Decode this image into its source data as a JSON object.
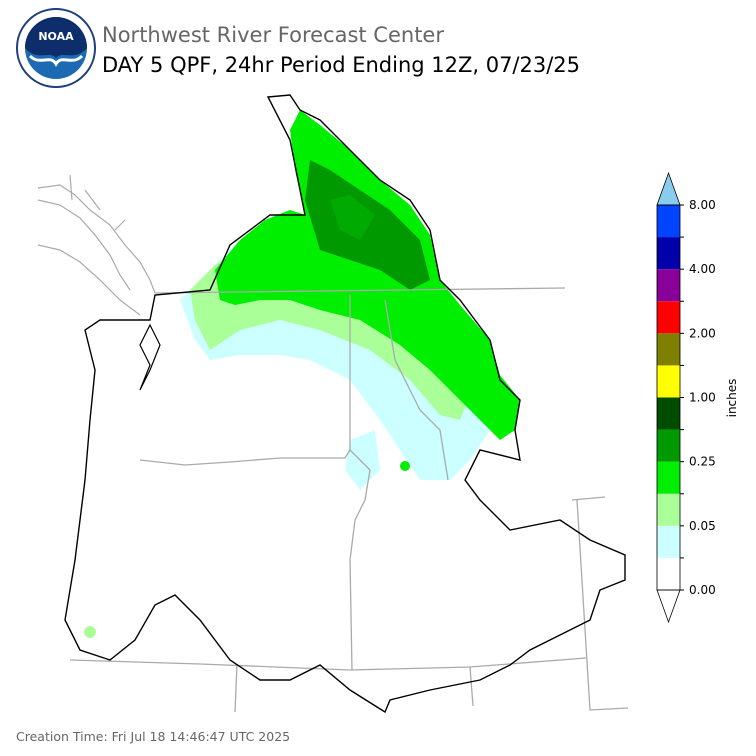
{
  "logo": {
    "text": "NOAA"
  },
  "header": {
    "title": "Northwest River Forecast Center",
    "subtitle": "DAY 5 QPF, 24hr Period Ending 12Z, 07/23/25"
  },
  "legend": {
    "label": "inches",
    "ticks": [
      "0.00",
      "0.05",
      "0.25",
      "1.00",
      "2.00",
      "4.00",
      "8.00"
    ],
    "colors": [
      "#ffffff",
      "#ccffff",
      "#aaff99",
      "#00ee00",
      "#009900",
      "#004d00",
      "#ffff00",
      "#808000",
      "#ff0000",
      "#880099",
      "#0000aa",
      "#0044ff"
    ],
    "over_color": "#88ccee",
    "under_color": "#ffffff"
  },
  "footer": {
    "creation_time": "Creation Time: Fri Jul 18 14:46:47 UTC 2025"
  }
}
